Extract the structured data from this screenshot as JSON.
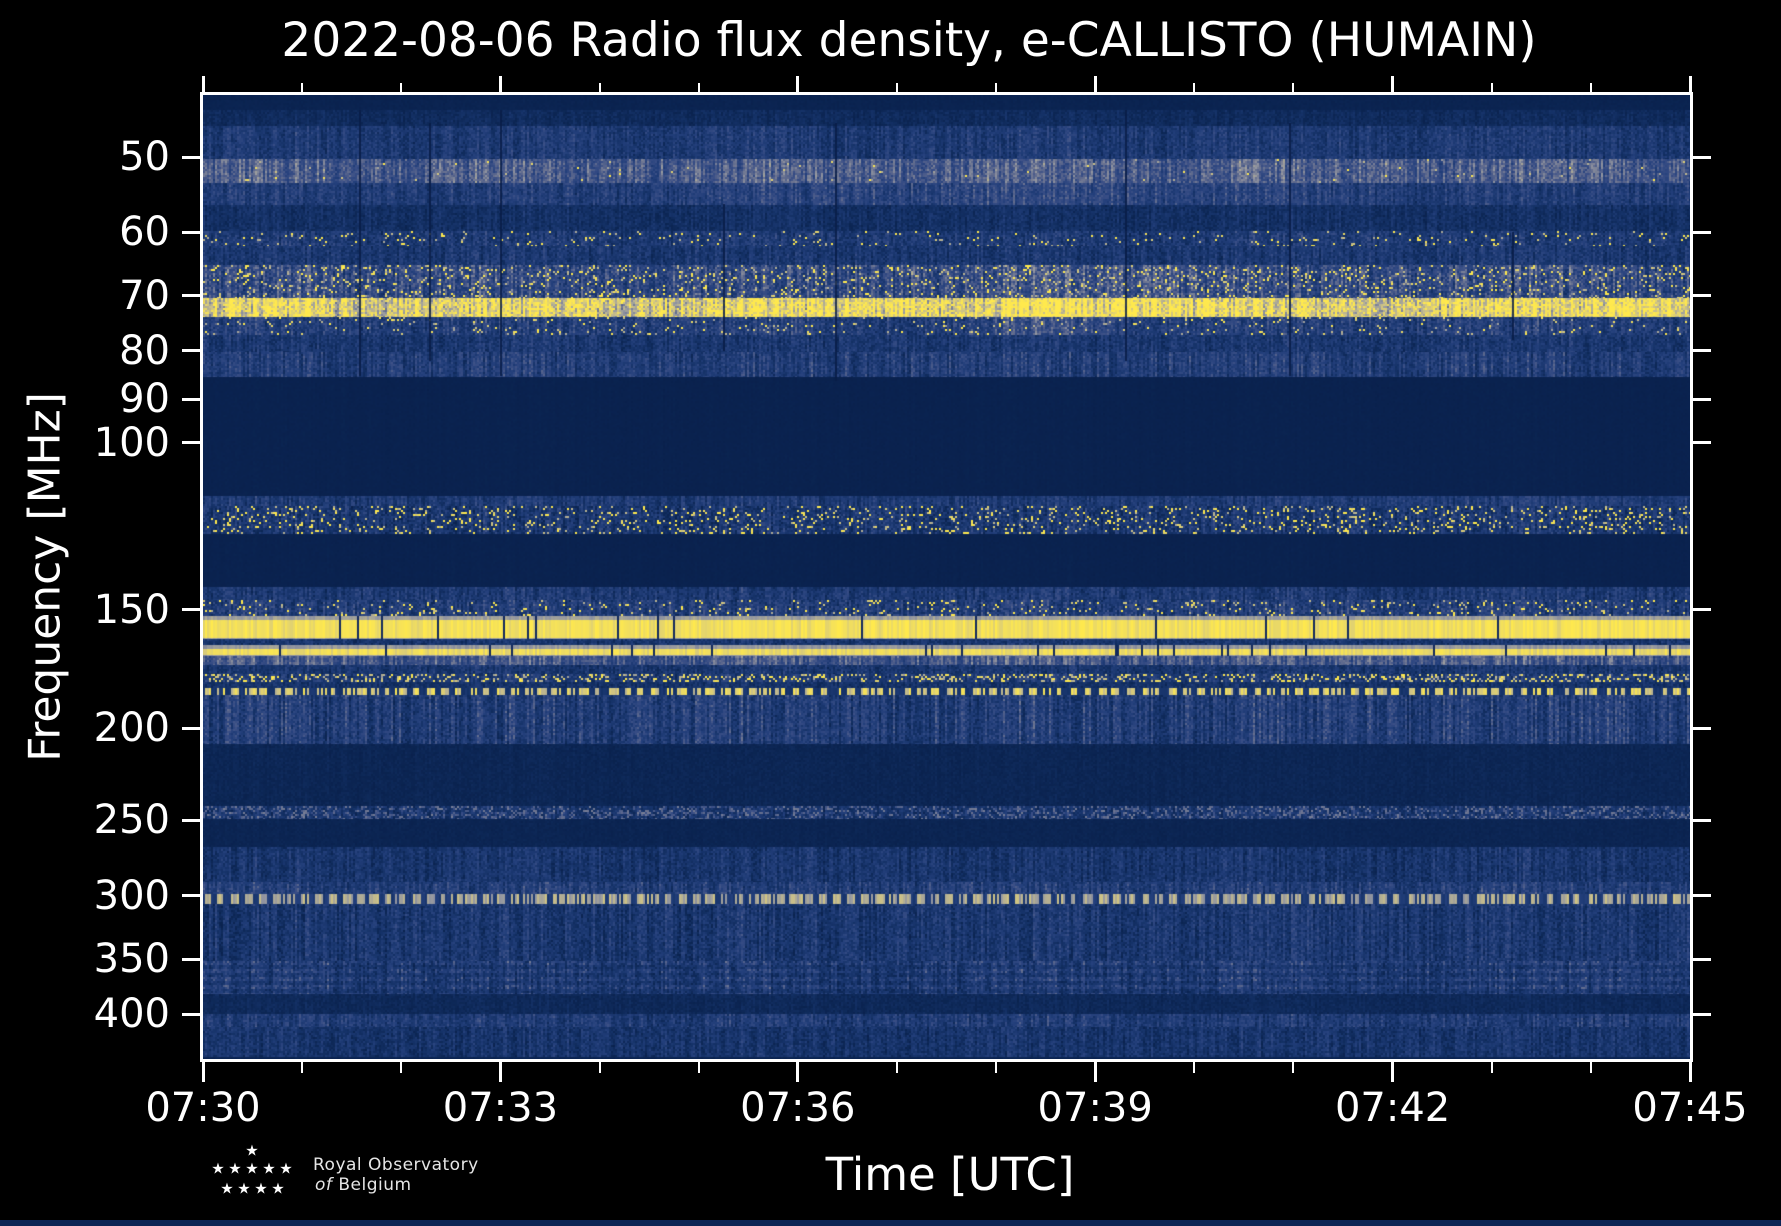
{
  "figure": {
    "title": "2022-08-06 Radio flux density, e-CALLISTO (HUMAIN)",
    "background_color": "#000000",
    "text_color": "#ffffff"
  },
  "chart_data": {
    "type": "heatmap",
    "title": "2022-08-06 Radio flux density, e-CALLISTO (HUMAIN)",
    "date": "2022-08-06",
    "instrument_network": "e-CALLISTO",
    "station": "HUMAIN",
    "xlabel": "Time [UTC]",
    "ylabel": "Frequency [MHz]",
    "x_ticks_major": [
      "07:30",
      "07:33",
      "07:36",
      "07:39",
      "07:42",
      "07:45"
    ],
    "x_major_tick_every": "3 min",
    "x_minor_tick_every": "1 min",
    "y_scale": "log",
    "y_axis_inverted": true,
    "y_ticks": [
      50,
      60,
      70,
      80,
      90,
      100,
      150,
      200,
      250,
      300,
      350,
      400
    ],
    "y_range_mhz": [
      43,
      446
    ],
    "grid": false,
    "legend": "none",
    "colormap_stops": [
      [
        0.0,
        "#081e49"
      ],
      [
        0.1,
        "#0c2654"
      ],
      [
        0.22,
        "#153268"
      ],
      [
        0.35,
        "#233f7b"
      ],
      [
        0.48,
        "#3a4f86"
      ],
      [
        0.6,
        "#687190"
      ],
      [
        0.72,
        "#9497a1"
      ],
      [
        0.84,
        "#c9bf8a"
      ],
      [
        0.93,
        "#eedc62"
      ],
      [
        1.0,
        "#ffe94d"
      ]
    ],
    "bands": [
      {
        "f0": 43.0,
        "f1": 44.6,
        "lv": 0.07,
        "nz": 0.02,
        "st": 0.1
      },
      {
        "f0": 44.6,
        "f1": 46.4,
        "lv": 0.15,
        "nz": 0.06,
        "st": 0.5
      },
      {
        "f0": 46.4,
        "f1": 50.2,
        "lv": 0.29,
        "nz": 0.1,
        "st": 0.6
      },
      {
        "f0": 50.2,
        "f1": 53.2,
        "lv": 0.52,
        "nz": 0.1,
        "st": 0.45,
        "dots": {
          "p": 0.008,
          "lv": 0.88
        }
      },
      {
        "f0": 53.2,
        "f1": 56.2,
        "lv": 0.33,
        "nz": 0.1,
        "st": 0.6,
        "bumps": [
          [
            0.3,
            0.8,
            0.08
          ]
        ]
      },
      {
        "f0": 56.2,
        "f1": 59.8,
        "lv": 0.2,
        "nz": 0.08,
        "st": 0.6
      },
      {
        "f0": 59.8,
        "f1": 62.0,
        "lv": 0.3,
        "nz": 0.12,
        "st": 0.5,
        "dots": {
          "p": 0.05,
          "lv": 0.93
        }
      },
      {
        "f0": 62.0,
        "f1": 65.0,
        "lv": 0.27,
        "nz": 0.1,
        "st": 0.6
      },
      {
        "f0": 65.0,
        "f1": 70.4,
        "lv": 0.42,
        "nz": 0.14,
        "st": 0.6,
        "dots": {
          "p": 0.1,
          "lv": 0.95
        },
        "bumps": [
          [
            0.5,
            0.72,
            0.08
          ]
        ]
      },
      {
        "f0": 70.4,
        "f1": 73.7,
        "lv": 0.88,
        "nz": 0.12,
        "st": 0.3,
        "dots": {
          "p": 0.15,
          "lv": 1.0
        },
        "bumps": [
          [
            0.4,
            0.52,
            0.06
          ],
          [
            0.52,
            0.7,
            0.12
          ],
          [
            0.93,
            1.0,
            0.1
          ]
        ]
      },
      {
        "f0": 73.7,
        "f1": 77.0,
        "lv": 0.34,
        "nz": 0.12,
        "st": 0.6,
        "dots": {
          "p": 0.05,
          "lv": 0.9
        },
        "bumps": [
          [
            0.52,
            0.62,
            0.15
          ]
        ]
      },
      {
        "f0": 77.0,
        "f1": 80.3,
        "lv": 0.27,
        "nz": 0.1,
        "st": 0.6
      },
      {
        "f0": 80.3,
        "f1": 85.2,
        "lv": 0.33,
        "nz": 0.1,
        "st": 0.7
      },
      {
        "f0": 85.2,
        "f1": 113.8,
        "lv": 0.055,
        "nz": 0.015,
        "st": 0.2
      },
      {
        "f0": 113.8,
        "f1": 116.5,
        "lv": 0.3,
        "nz": 0.08,
        "st": 0.7
      },
      {
        "f0": 116.5,
        "f1": 124.9,
        "lv": 0.27,
        "nz": 0.13,
        "st": 0.7,
        "dots": {
          "p": 0.11,
          "lv": 0.95
        }
      },
      {
        "f0": 124.9,
        "f1": 142.0,
        "lv": 0.055,
        "nz": 0.015,
        "st": 0.2
      },
      {
        "f0": 142.0,
        "f1": 146.5,
        "lv": 0.29,
        "nz": 0.1,
        "st": 0.7
      },
      {
        "f0": 146.5,
        "f1": 152.3,
        "lv": 0.33,
        "nz": 0.13,
        "st": 0.6,
        "dots": {
          "p": 0.07,
          "lv": 0.95
        }
      },
      {
        "f0": 152.3,
        "f1": 160.9,
        "type": "line",
        "lv": 0.96,
        "gap": 0.022
      },
      {
        "f0": 160.9,
        "f1": 163.2,
        "lv": 0.25,
        "nz": 0.1,
        "st": 0.5
      },
      {
        "f0": 163.2,
        "f1": 167.7,
        "type": "line",
        "lv": 0.94,
        "gap": 0.03
      },
      {
        "f0": 167.7,
        "f1": 171.3,
        "lv": 0.5,
        "nz": 0.08,
        "st": 0.5
      },
      {
        "f0": 171.3,
        "f1": 175.4,
        "lv": 0.26,
        "nz": 0.1,
        "st": 0.6
      },
      {
        "f0": 175.4,
        "f1": 178.8,
        "lv": 0.3,
        "nz": 0.12,
        "st": 0.5,
        "dots": {
          "p": 0.25,
          "lv": 0.9
        }
      },
      {
        "f0": 178.8,
        "f1": 181.2,
        "lv": 0.22,
        "nz": 0.08,
        "st": 0.5
      },
      {
        "f0": 181.2,
        "f1": 184.2,
        "type": "dotted",
        "lv": 0.88,
        "base": 0.25
      },
      {
        "f0": 184.2,
        "f1": 207.5,
        "lv": 0.33,
        "nz": 0.11,
        "st": 0.85
      },
      {
        "f0": 207.5,
        "f1": 241.5,
        "lv": 0.1,
        "nz": 0.04,
        "st": 0.3
      },
      {
        "f0": 241.5,
        "f1": 249.0,
        "lv": 0.24,
        "nz": 0.1,
        "st": 0.6,
        "dots": {
          "p": 0.3,
          "lv": 0.55
        }
      },
      {
        "f0": 249.0,
        "f1": 266.5,
        "lv": 0.085,
        "nz": 0.03,
        "st": 0.2
      },
      {
        "f0": 266.5,
        "f1": 290.0,
        "lv": 0.25,
        "nz": 0.1,
        "st": 0.7
      },
      {
        "f0": 290.0,
        "f1": 299.0,
        "lv": 0.33,
        "nz": 0.1,
        "st": 0.7
      },
      {
        "f0": 299.0,
        "f1": 306.0,
        "type": "dotted",
        "lv": 0.78,
        "base": 0.3
      },
      {
        "f0": 306.0,
        "f1": 352.0,
        "lv": 0.27,
        "nz": 0.11,
        "st": 0.8
      },
      {
        "f0": 352.0,
        "f1": 381.0,
        "lv": 0.3,
        "nz": 0.12,
        "st": 0.7,
        "rows": true
      },
      {
        "f0": 381.0,
        "f1": 400.0,
        "lv": 0.13,
        "nz": 0.05,
        "st": 0.4
      },
      {
        "f0": 400.0,
        "f1": 413.0,
        "lv": 0.31,
        "nz": 0.1,
        "st": 0.7
      },
      {
        "f0": 413.0,
        "f1": 444.0,
        "lv": 0.24,
        "nz": 0.1,
        "st": 0.7
      },
      {
        "f0": 444.0,
        "f1": 446.0,
        "lv": 0.08,
        "nz": 0.02,
        "st": 0.1
      }
    ],
    "dropout_columns": [
      {
        "x": 0.105,
        "f0": 44.6,
        "f1": 85
      },
      {
        "x": 0.152,
        "f0": 46,
        "f1": 82
      },
      {
        "x": 0.2,
        "f0": 44.6,
        "f1": 85
      },
      {
        "x": 0.35,
        "f0": 56,
        "f1": 80
      },
      {
        "x": 0.425,
        "f0": 46,
        "f1": 86
      },
      {
        "x": 0.62,
        "f0": 44.6,
        "f1": 82
      },
      {
        "x": 0.73,
        "f0": 46,
        "f1": 85
      },
      {
        "x": 0.88,
        "f0": 60,
        "f1": 78
      }
    ]
  },
  "logo": {
    "line1": "Royal Observatory",
    "line2_italic": "of",
    "line2_rest": "Belgium",
    "star_glyph": "★",
    "star_rows": [
      1,
      5,
      4
    ]
  }
}
